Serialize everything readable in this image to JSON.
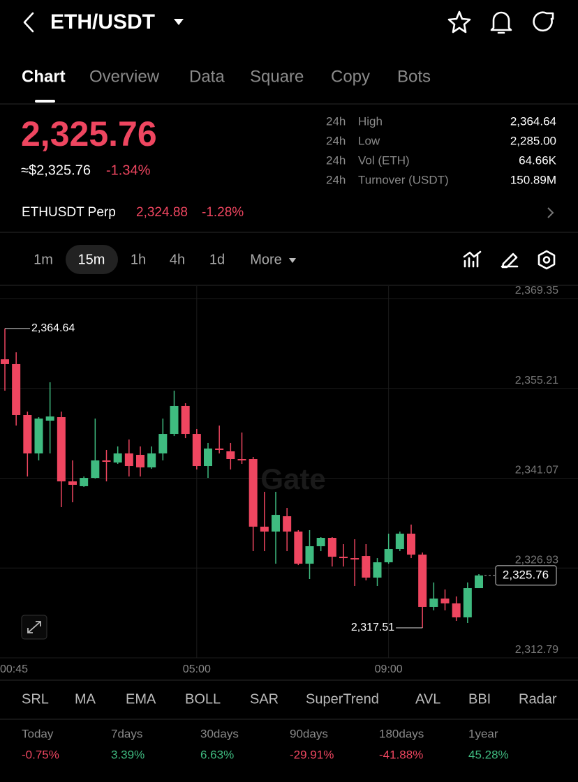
{
  "header": {
    "pair": "ETH/USDT"
  },
  "tabs": {
    "items": [
      "Chart",
      "Overview",
      "Data",
      "Square",
      "Copy",
      "Bots"
    ],
    "active": 0
  },
  "price": {
    "last": "2,325.76",
    "usd": "≈$2,325.76",
    "change": "-1.34%"
  },
  "stats": {
    "rows": [
      [
        "24h",
        "High",
        "2,364.64"
      ],
      [
        "24h",
        "Low",
        "2,285.00"
      ],
      [
        "24h",
        "Vol (ETH)",
        "64.66K"
      ],
      [
        "24h",
        "Turnover (USDT)",
        "150.89M"
      ]
    ]
  },
  "perp": {
    "name": "ETHUSDT Perp",
    "price": "2,324.88",
    "change": "-1.28%"
  },
  "intervals": {
    "items": [
      "1m",
      "15m",
      "1h",
      "4h",
      "1d",
      "More"
    ],
    "active": 1
  },
  "chart_data": {
    "type": "candlestick",
    "watermark": "Gate",
    "categories": [
      "00:45",
      null,
      null,
      null,
      null,
      null,
      null,
      null,
      null,
      null,
      null,
      null,
      null,
      null,
      null,
      null,
      null,
      "05:00",
      null,
      null,
      null,
      null,
      null,
      null,
      null,
      null,
      null,
      null,
      null,
      null,
      null,
      null,
      null,
      null,
      "09:00",
      null,
      null,
      null,
      null,
      null,
      null,
      null,
      null
    ],
    "open": [
      2359.79,
      2359.03,
      2351.01,
      2344.97,
      2350.13,
      2350.68,
      2340.57,
      2339.81,
      2341.12,
      2343.87,
      2343.54,
      2344.97,
      2344.75,
      2342.77,
      2344.97,
      2348.04,
      2352.44,
      2348.04,
      2342.99,
      2345.74,
      2345.3,
      2344.09,
      2344.09,
      2333.44,
      2332.67,
      2335.08,
      2332.67,
      2327.61,
      2330.36,
      2331.68,
      2328.71,
      2328.49,
      2328.82,
      2325.42,
      2327.83,
      2329.92,
      2332.34,
      2329.04,
      2320.81,
      2322.12,
      2321.36,
      2319.16,
      2323.77
    ],
    "high": [
      2364.64,
      2360.89,
      2351.56,
      2350.68,
      2356.17,
      2351.56,
      2343.87,
      2341.34,
      2350.46,
      2345.52,
      2346.07,
      2347.16,
      2346.07,
      2346.07,
      2350.46,
      2354.85,
      2352.87,
      2348.81,
      2346.62,
      2349.36,
      2346.62,
      2348.26,
      2344.42,
      2338.93,
      2338.93,
      2336.4,
      2332.89,
      2332.89,
      2331.79,
      2331.79,
      2330.69,
      2331.46,
      2330.69,
      2328.49,
      2332.34,
      2332.67,
      2333.77,
      2329.37,
      2324.65,
      2323.55,
      2322.45,
      2324.65,
      2325.97
    ],
    "low": [
      2354.85,
      2349.36,
      2341.34,
      2343.87,
      2344.97,
      2336.51,
      2337.28,
      2339.7,
      2341.01,
      2340.57,
      2343.32,
      2341.34,
      2341.34,
      2342.55,
      2343.87,
      2347.71,
      2347.38,
      2342.44,
      2341.12,
      2344.97,
      2342.44,
      2343.32,
      2329.59,
      2329.59,
      2327.61,
      2329.59,
      2327.39,
      2325.2,
      2329.59,
      2327.17,
      2327.17,
      2324.1,
      2324.98,
      2324.1,
      2327.61,
      2329.59,
      2328.49,
      2317.51,
      2320.26,
      2320.26,
      2318.61,
      2318.28,
      2323.77
    ],
    "close": [
      2359.03,
      2351.01,
      2344.97,
      2350.46,
      2350.79,
      2340.57,
      2340.03,
      2341.12,
      2343.87,
      2343.65,
      2344.97,
      2342.99,
      2342.77,
      2344.97,
      2348.04,
      2352.44,
      2348.04,
      2342.99,
      2345.74,
      2345.52,
      2344.09,
      2343.87,
      2333.44,
      2332.67,
      2335.3,
      2332.67,
      2327.61,
      2330.36,
      2331.68,
      2328.71,
      2328.49,
      2328.27,
      2325.42,
      2327.83,
      2329.92,
      2332.34,
      2329.04,
      2320.81,
      2322.12,
      2321.36,
      2319.16,
      2323.77,
      2325.76
    ],
    "up_color": "#3fbb80",
    "down_color": "#ef4660",
    "ylim": [
      2312.79,
      2369.35
    ],
    "yticks": [
      {
        "value": 2369.35,
        "label": "2,369.35"
      },
      {
        "value": 2355.21,
        "label": "2,355.21"
      },
      {
        "value": 2341.07,
        "label": "2,341.07"
      },
      {
        "value": 2326.93,
        "label": "2,326.93"
      },
      {
        "value": 2312.79,
        "label": "2,312.79"
      }
    ],
    "grid": true,
    "high_marker": {
      "value": 2364.64,
      "label": "2,364.64"
    },
    "low_marker": {
      "value": 2317.51,
      "label": "2,317.51"
    },
    "last_price": {
      "value": 2325.76,
      "label": "2,325.76"
    }
  },
  "indicators": [
    "SRL",
    "MA",
    "EMA",
    "BOLL",
    "SAR",
    "SuperTrend",
    "AVL",
    "BBI",
    "Radar"
  ],
  "performance": [
    {
      "period": "Today",
      "value": "-0.75%"
    },
    {
      "period": "7days",
      "value": "3.39%"
    },
    {
      "period": "30days",
      "value": "6.63%"
    },
    {
      "period": "90days",
      "value": "-29.91%"
    },
    {
      "period": "180days",
      "value": "-41.88%"
    },
    {
      "period": "1year",
      "value": "45.28%"
    }
  ]
}
